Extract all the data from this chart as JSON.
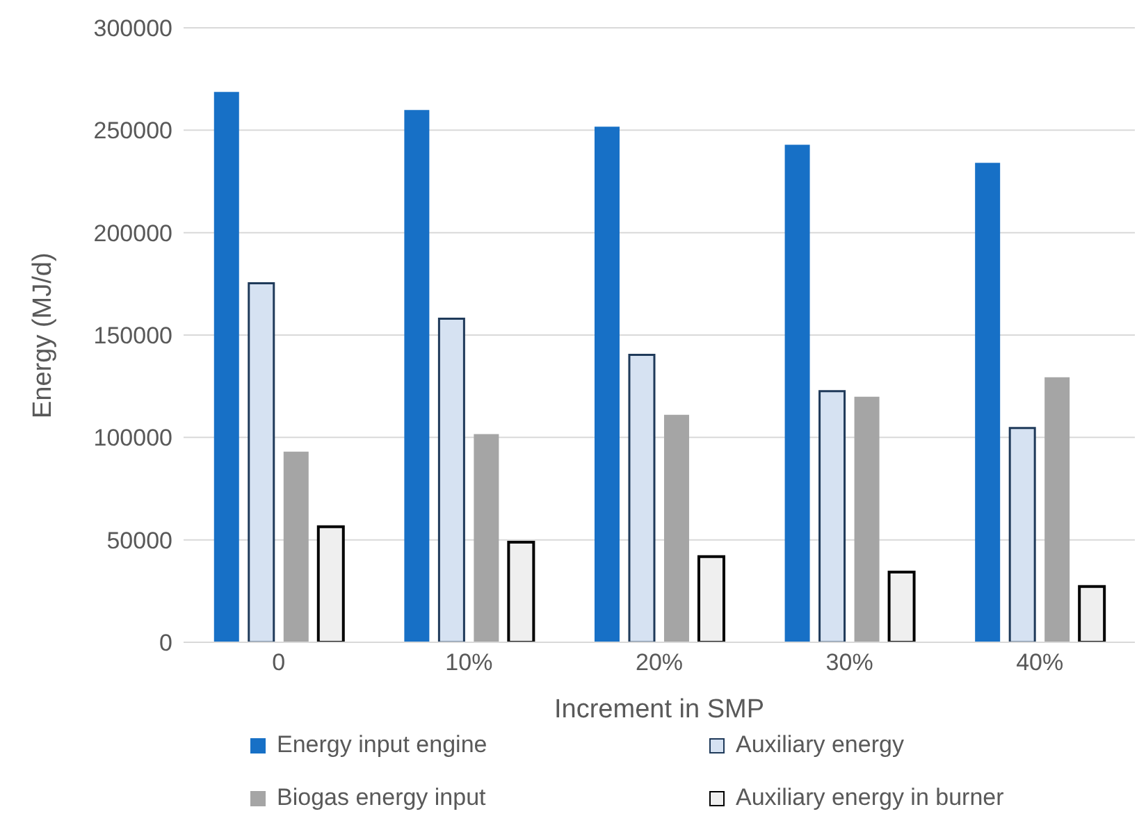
{
  "chart_data": {
    "type": "bar",
    "xlabel": "Increment in SMP",
    "ylabel": "Energy (MJ/d)",
    "categories": [
      "0",
      "10%",
      "20%",
      "30%",
      "40%"
    ],
    "series": [
      {
        "name": "Energy input engine",
        "color": "#1770c6",
        "values": [
          268700,
          259900,
          251700,
          242900,
          234100
        ]
      },
      {
        "name": "Auxiliary energy",
        "color": "#d6e2f2",
        "values": [
          175300,
          158000,
          140300,
          122600,
          104600
        ]
      },
      {
        "name": "Biogas energy input",
        "color": "#a5a5a5",
        "values": [
          93100,
          101600,
          111100,
          119900,
          129400
        ]
      },
      {
        "name": "Auxiliary energy in burner",
        "color": "#efefef",
        "values": [
          56400,
          48900,
          41800,
          34300,
          27200
        ]
      }
    ],
    "ylim": [
      0,
      300000
    ],
    "yticks": [
      0,
      50000,
      100000,
      150000,
      200000,
      250000,
      300000
    ],
    "grid": "y",
    "legend": "bottom"
  }
}
